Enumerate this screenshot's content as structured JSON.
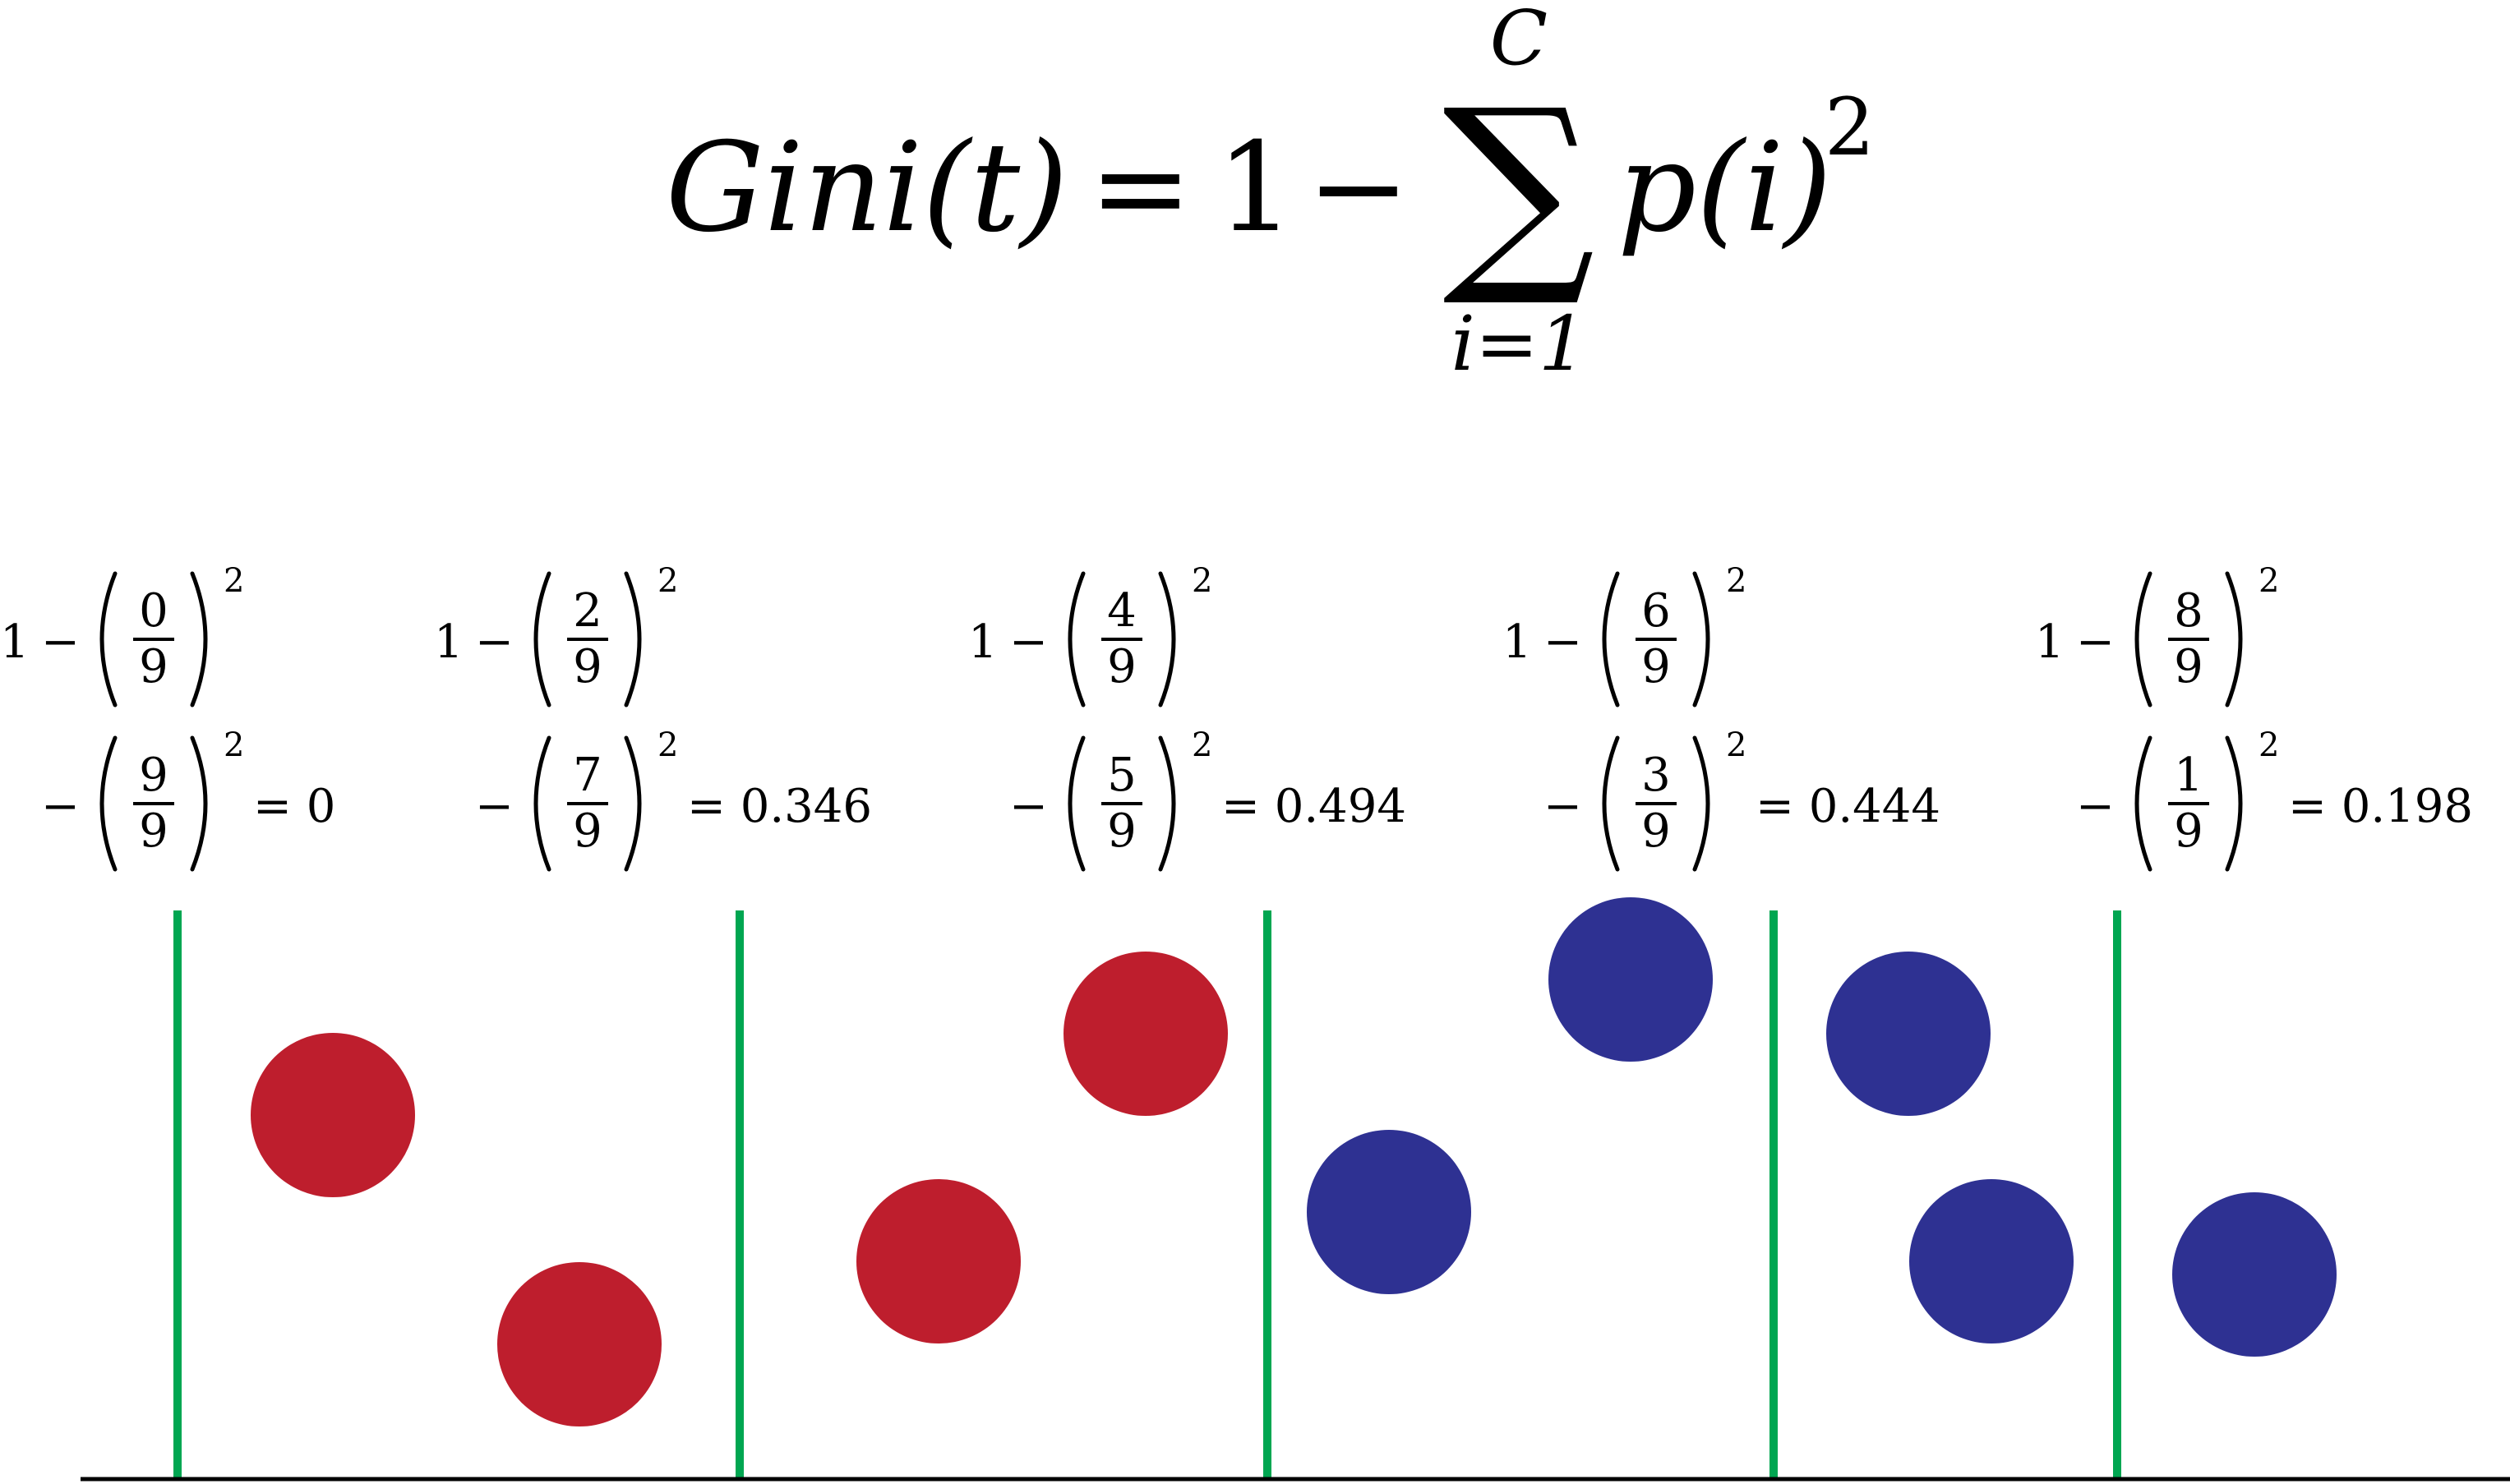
{
  "formula": {
    "lhs": "Gini(t)",
    "equals": "=",
    "one": "1",
    "minus": "−",
    "sum_symbol": "∑",
    "sum_upper": "C",
    "sum_lower": "i=1",
    "summand": "p(i)",
    "exponent": "2"
  },
  "colors": {
    "red": "#be1e2d",
    "blue": "#2e3192",
    "divider": "#00a651",
    "baseline": "#000000"
  },
  "splits": [
    {
      "frac1_num": "0",
      "frac1_den": "9",
      "frac2_num": "9",
      "frac2_den": "9",
      "result": "= 0"
    },
    {
      "frac1_num": "2",
      "frac1_den": "9",
      "frac2_num": "7",
      "frac2_den": "9",
      "result": "= 0.346"
    },
    {
      "frac1_num": "4",
      "frac1_den": "9",
      "frac2_num": "5",
      "frac2_den": "9",
      "result": "= 0.494"
    },
    {
      "frac1_num": "6",
      "frac1_den": "9",
      "frac2_num": "3",
      "frac2_den": "9",
      "result": "= 0.444"
    },
    {
      "frac1_num": "8",
      "frac1_den": "9",
      "frac2_num": "1",
      "frac2_den": "9",
      "result": "= 0.198"
    }
  ],
  "circles": [
    {
      "color": "red"
    },
    {
      "color": "red"
    },
    {
      "color": "red"
    },
    {
      "color": "red"
    },
    {
      "color": "blue"
    },
    {
      "color": "blue"
    },
    {
      "color": "blue"
    },
    {
      "color": "blue"
    },
    {
      "color": "blue"
    }
  ]
}
